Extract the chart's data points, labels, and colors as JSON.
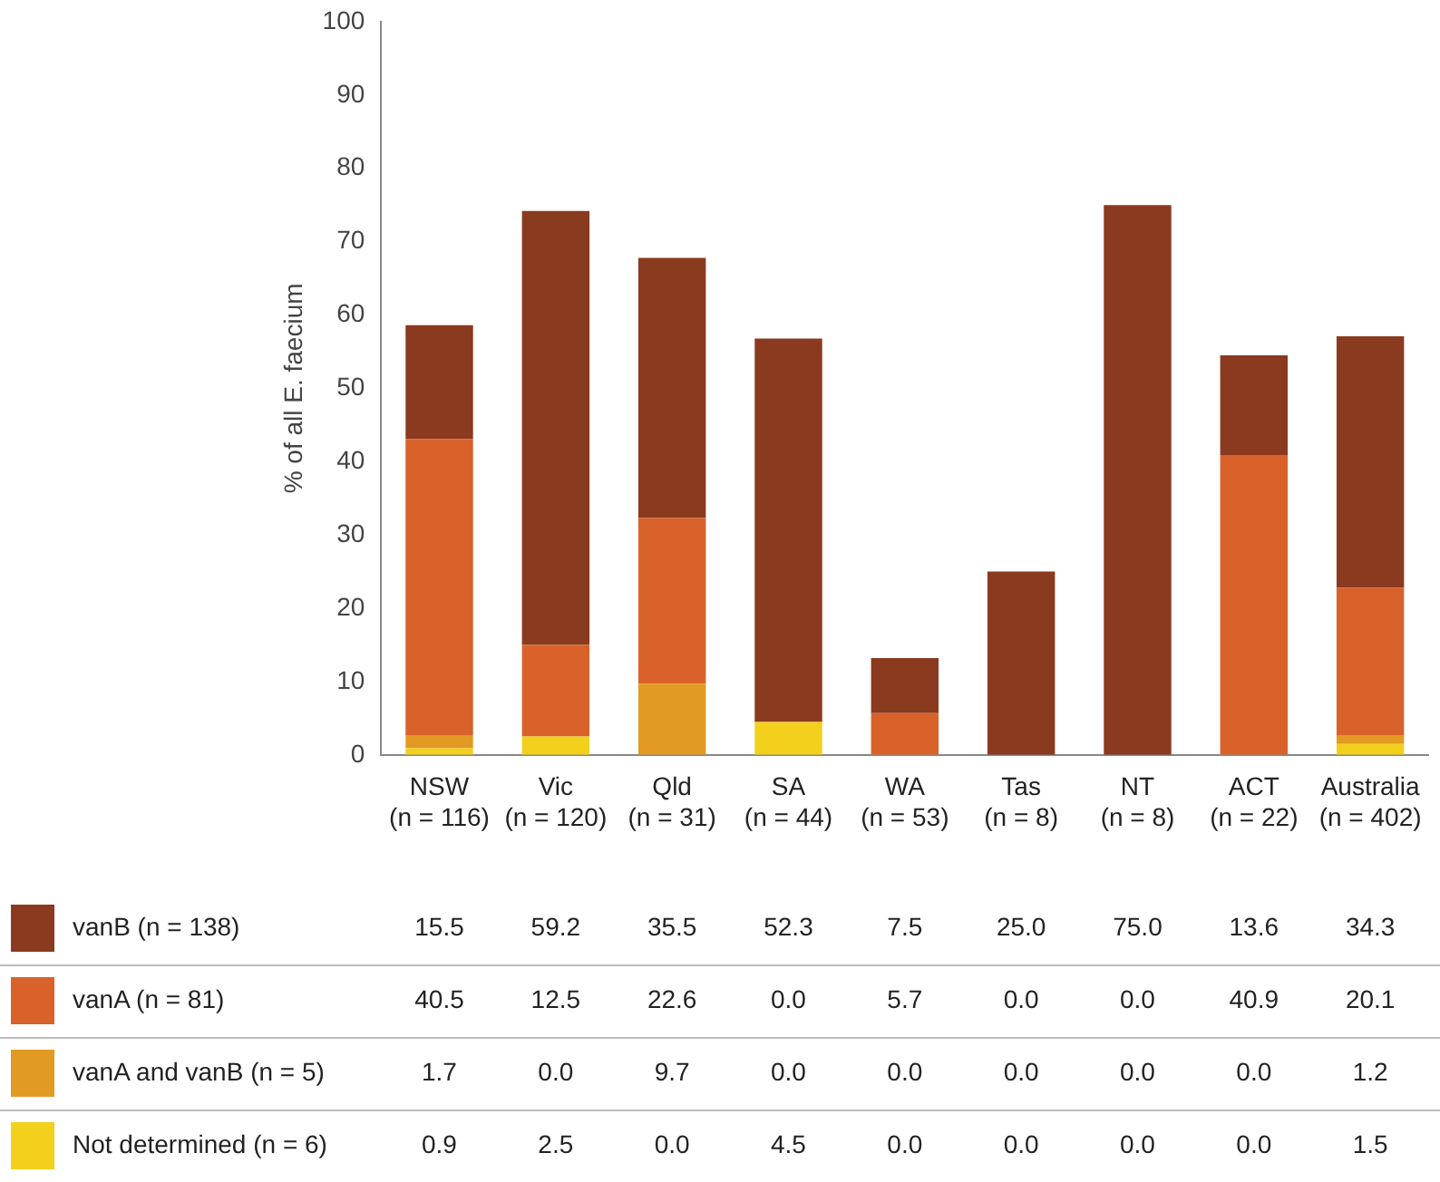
{
  "chart_data": {
    "type": "bar",
    "stacked": true,
    "ylabel": "% of all E. faecium",
    "legend": "bottom",
    "grid": false,
    "categories": [
      "NSW\n(n = 116)",
      "Vic\n(n = 120)",
      "Qld\n(n = 31)",
      "SA\n(n = 44)",
      "WA\n(n = 53)",
      "Tas\n(n = 8)",
      "NT\n(n = 8)",
      "ACT\n(n = 22)",
      "Australia\n(n = 402)"
    ],
    "ylim": [
      0,
      100
    ],
    "yticks": [
      0,
      10,
      20,
      30,
      40,
      50,
      60,
      70,
      80,
      90,
      100
    ],
    "series": [
      {
        "name": "Not determined (n = 6)",
        "color": "#f3d01c",
        "values": [
          0.9,
          2.5,
          0,
          4.5,
          0,
          0,
          0,
          0,
          1.5
        ],
        "value_labels": [
          "0.9",
          "2.5",
          "0.0",
          "4.5",
          "0.0",
          "0.0",
          "0.0",
          "0.0",
          "1.5"
        ]
      },
      {
        "name": "vanA and vanB (n = 5)",
        "color": "#e39a22",
        "values": [
          1.7,
          0,
          9.7,
          0,
          0,
          0,
          0,
          0,
          1.2
        ],
        "value_labels": [
          "1.7",
          "0.0",
          "9.7",
          "0.0",
          "0.0",
          "0.0",
          "0.0",
          "0.0",
          "1.2"
        ]
      },
      {
        "name": "vanA (n = 81)",
        "color": "#d9622b",
        "values": [
          40.5,
          12.5,
          22.6,
          0,
          5.7,
          0,
          0,
          40.9,
          20.1
        ],
        "value_labels": [
          "40.5",
          "12.5",
          "22.6",
          "0.0",
          "5.7",
          "0.0",
          "0.0",
          "40.9",
          "20.1"
        ]
      },
      {
        "name": "vanB (n = 138)",
        "color": "#8a3a1f",
        "values": [
          15.5,
          59.2,
          35.5,
          52.3,
          7.5,
          25,
          75,
          13.6,
          34.3
        ],
        "value_labels": [
          "15.5",
          "59.2",
          "35.5",
          "52.3",
          "7.5",
          "25.0",
          "75.0",
          "13.6",
          "34.3"
        ]
      }
    ]
  }
}
